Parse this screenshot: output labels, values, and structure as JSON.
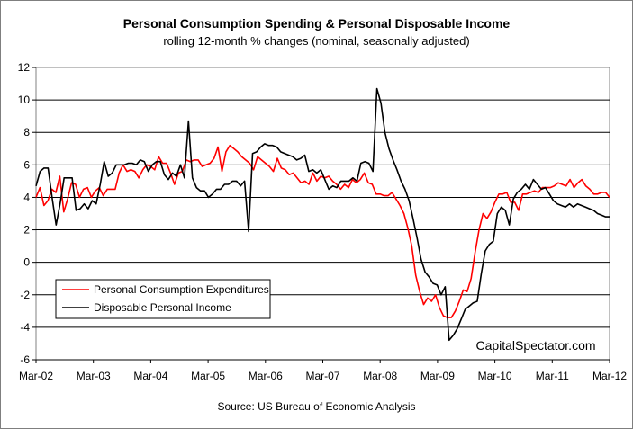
{
  "chart_data": {
    "type": "line",
    "title": "Personal Consumption Spending & Personal Disposable Income",
    "subtitle": "rolling 12-month % changes (nominal, seasonally adjusted)",
    "source": "Source: US Bureau of Economic Analysis",
    "watermark": "CapitalSpectator.com",
    "xlabel": "",
    "ylabel": "",
    "ylim": [
      -6,
      12
    ],
    "yticks": [
      -6,
      -4,
      -2,
      0,
      2,
      4,
      6,
      8,
      10,
      12
    ],
    "x_tick_labels": [
      "Mar-02",
      "Mar-03",
      "Mar-04",
      "Mar-05",
      "Mar-06",
      "Mar-07",
      "Mar-08",
      "Mar-09",
      "Mar-10",
      "Mar-11",
      "Mar-12"
    ],
    "x_start": "Mar-02",
    "x_end": "Mar-12",
    "grid": "horizontal",
    "legend_position": "lower-left",
    "series": [
      {
        "name": "Personal Consumption Expenditures",
        "color": "#ff0000",
        "values": [
          4.0,
          4.6,
          3.5,
          3.8,
          4.5,
          4.3,
          5.3,
          3.1,
          3.9,
          4.9,
          4.8,
          4.0,
          4.5,
          4.6,
          4.0,
          4.4,
          4.6,
          4.1,
          4.5,
          4.5,
          4.5,
          5.5,
          6.0,
          5.6,
          5.7,
          5.6,
          5.2,
          5.7,
          6.0,
          5.9,
          5.7,
          6.5,
          6.1,
          6.1,
          5.5,
          4.8,
          5.5,
          5.6,
          6.3,
          6.2,
          6.3,
          6.3,
          5.9,
          6.0,
          6.1,
          6.4,
          7.1,
          5.6,
          6.8,
          7.2,
          7.0,
          6.8,
          6.5,
          6.3,
          6.1,
          5.7,
          6.5,
          6.3,
          6.1,
          5.9,
          5.6,
          6.4,
          5.8,
          5.7,
          5.4,
          5.5,
          5.2,
          4.9,
          5.0,
          4.8,
          5.5,
          5.0,
          5.3,
          5.2,
          5.3,
          5.0,
          4.8,
          4.5,
          4.8,
          4.6,
          5.1,
          4.9,
          5.1,
          5.5,
          4.9,
          4.8,
          4.2,
          4.2,
          4.1,
          4.1,
          4.3,
          3.9,
          3.5,
          3.0,
          2.1,
          1.0,
          -0.8,
          -1.8,
          -2.6,
          -2.2,
          -2.4,
          -2.0,
          -2.8,
          -3.3,
          -3.4,
          -3.4,
          -3.0,
          -2.4,
          -1.7,
          -1.8,
          -1.0,
          0.6,
          2.0,
          3.0,
          2.7,
          3.1,
          3.7,
          4.2,
          4.2,
          4.3,
          3.7,
          3.7,
          3.2,
          4.2,
          4.2,
          4.3,
          4.4,
          4.3,
          4.6,
          4.6,
          4.6,
          4.7,
          4.9,
          4.8,
          4.7,
          5.1,
          4.6,
          4.9,
          5.1,
          4.7,
          4.5,
          4.2,
          4.2,
          4.3,
          4.3,
          4.0
        ]
      },
      {
        "name": "Disposable Personal Income",
        "color": "#000000",
        "values": [
          4.7,
          5.6,
          5.8,
          5.8,
          4.0,
          2.3,
          3.6,
          5.2,
          5.2,
          5.2,
          3.2,
          3.3,
          3.6,
          3.3,
          3.8,
          3.6,
          4.8,
          6.2,
          5.3,
          5.5,
          6.0,
          6.0,
          6.0,
          6.1,
          6.1,
          6.0,
          6.3,
          6.2,
          5.6,
          6.0,
          6.2,
          6.2,
          5.4,
          5.1,
          5.5,
          5.3,
          6.0,
          5.2,
          8.7,
          5.2,
          4.6,
          4.4,
          4.4,
          4.0,
          4.2,
          4.5,
          4.5,
          4.8,
          4.8,
          5.0,
          5.0,
          4.7,
          5.0,
          1.9,
          6.7,
          6.8,
          7.1,
          7.3,
          7.2,
          7.2,
          7.1,
          6.8,
          6.7,
          6.6,
          6.5,
          6.3,
          6.4,
          6.6,
          5.6,
          5.7,
          5.5,
          5.7,
          5.1,
          4.5,
          4.7,
          4.6,
          5.0,
          5.0,
          5.0,
          5.2,
          5.0,
          6.1,
          6.2,
          6.1,
          5.6,
          10.7,
          9.8,
          8.0,
          7.0,
          6.3,
          5.7,
          5.0,
          4.5,
          3.8,
          2.7,
          1.5,
          0.2,
          -0.6,
          -0.9,
          -1.3,
          -1.4,
          -2.0,
          -1.5,
          -4.8,
          -4.5,
          -4.1,
          -3.5,
          -2.9,
          -2.7,
          -2.5,
          -2.4,
          -0.7,
          0.7,
          1.1,
          1.3,
          3.0,
          3.4,
          3.2,
          2.3,
          3.9,
          4.3,
          4.5,
          4.8,
          4.5,
          5.1,
          4.8,
          4.5,
          4.6,
          4.2,
          3.8,
          3.6,
          3.5,
          3.4,
          3.6,
          3.4,
          3.6,
          3.5,
          3.4,
          3.3,
          3.2,
          3.0,
          2.9,
          2.8,
          2.8
        ]
      }
    ]
  }
}
